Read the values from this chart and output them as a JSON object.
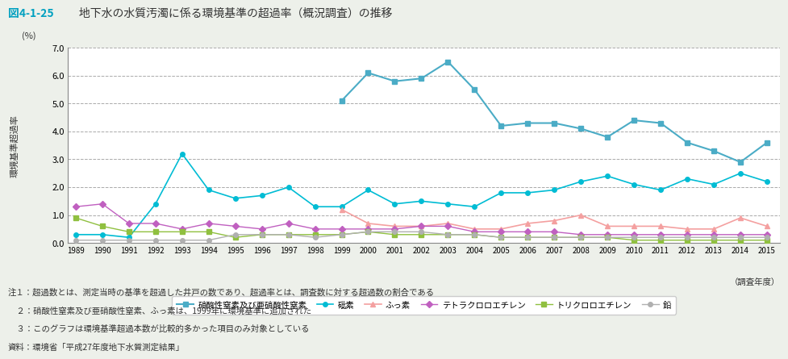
{
  "title_prefix": "図4-1-25",
  "title_main": "　地下水の水質汚濁に係る環境基準の超過率（概況調査）の推移",
  "ylabel_lines": [
    "環",
    "境",
    "基",
    "準",
    "超",
    "過",
    "率"
  ],
  "xlabel_note": "（調査年度）",
  "ylabel_unit": "(%)",
  "years": [
    1989,
    1990,
    1991,
    1992,
    1993,
    1994,
    1995,
    1996,
    1997,
    1998,
    1999,
    2000,
    2001,
    2002,
    2003,
    2004,
    2005,
    2006,
    2007,
    2008,
    2009,
    2010,
    2011,
    2012,
    2013,
    2014,
    2015
  ],
  "series": {
    "硝酸性窒素及び亜硝酸性窒素": {
      "color": "#4bacc6",
      "marker": "s",
      "markersize": 4,
      "linewidth": 1.5,
      "values": [
        null,
        null,
        null,
        null,
        null,
        null,
        null,
        null,
        null,
        null,
        5.1,
        6.1,
        5.8,
        5.9,
        6.5,
        5.5,
        4.2,
        4.3,
        4.3,
        4.1,
        3.8,
        4.4,
        4.3,
        3.6,
        3.3,
        2.9,
        3.6
      ]
    },
    "砒素": {
      "color": "#00bcd4",
      "marker": "o",
      "markersize": 4,
      "linewidth": 1.2,
      "values": [
        0.3,
        0.3,
        0.2,
        1.4,
        3.2,
        1.9,
        1.6,
        1.7,
        2.0,
        1.3,
        1.3,
        1.9,
        1.4,
        1.5,
        1.4,
        1.3,
        1.8,
        1.8,
        1.9,
        2.2,
        2.4,
        2.1,
        1.9,
        2.3,
        2.1,
        2.5,
        2.2
      ]
    },
    "ふっ素": {
      "color": "#f4a0a0",
      "marker": "^",
      "markersize": 4,
      "linewidth": 1.2,
      "values": [
        null,
        null,
        null,
        null,
        null,
        null,
        null,
        null,
        null,
        null,
        1.2,
        0.7,
        0.6,
        0.6,
        0.7,
        0.5,
        0.5,
        0.7,
        0.8,
        1.0,
        0.6,
        0.6,
        0.6,
        0.5,
        0.5,
        0.9,
        0.6
      ]
    },
    "テトラクロロエチレン": {
      "color": "#c060c0",
      "marker": "D",
      "markersize": 4,
      "linewidth": 1.0,
      "values": [
        1.3,
        1.4,
        0.7,
        0.7,
        0.5,
        0.7,
        0.6,
        0.5,
        0.7,
        0.5,
        0.5,
        0.5,
        0.5,
        0.6,
        0.6,
        0.4,
        0.4,
        0.4,
        0.4,
        0.3,
        0.3,
        0.3,
        0.3,
        0.3,
        0.3,
        0.3,
        0.3
      ]
    },
    "トリクロロエチレン": {
      "color": "#90c040",
      "marker": "s",
      "markersize": 4,
      "linewidth": 1.0,
      "values": [
        0.9,
        0.6,
        0.4,
        0.4,
        0.4,
        0.4,
        0.2,
        0.3,
        0.3,
        0.3,
        0.3,
        0.4,
        0.3,
        0.3,
        0.3,
        0.3,
        0.2,
        0.2,
        0.2,
        0.2,
        0.2,
        0.1,
        0.1,
        0.1,
        0.1,
        0.1,
        0.1
      ]
    },
    "鉛": {
      "color": "#b0b0b0",
      "marker": "o",
      "markersize": 4,
      "linewidth": 1.0,
      "values": [
        0.1,
        0.1,
        0.1,
        0.1,
        0.1,
        0.1,
        0.3,
        0.3,
        0.3,
        0.2,
        0.3,
        0.4,
        0.4,
        0.4,
        0.3,
        0.3,
        0.2,
        0.2,
        0.2,
        0.2,
        0.2,
        0.2,
        0.2,
        0.2,
        0.2,
        0.2,
        0.2
      ]
    }
  },
  "ylim": [
    0.0,
    7.0
  ],
  "yticks": [
    0.0,
    1.0,
    2.0,
    3.0,
    4.0,
    5.0,
    6.0,
    7.0
  ],
  "notes": [
    "注１：超過数とは、測定当時の基準を超過した井戸の数であり、超過率とは、調査数に対する超過数の割合である",
    "　２：硝酸性窒素及び亜硝酸性窒素、ふっ素は、1999年に環境基準に追加された",
    "　３：このグラフは環境基準超過本数が比較的多かった項目のみ対象としている",
    "資料：環境省「平成27年度地下水質測定結果」"
  ],
  "legend_order": [
    "硝酸性窒素及び亜硝酸性窒素",
    "砒素",
    "ふっ素",
    "テトラクロロエチレン",
    "トリクロロエチレン",
    "鉛"
  ],
  "background_color": "#edf0ea",
  "plot_background": "#ffffff",
  "title_color_prefix": "#00a0c0",
  "title_color_main": "#333333"
}
